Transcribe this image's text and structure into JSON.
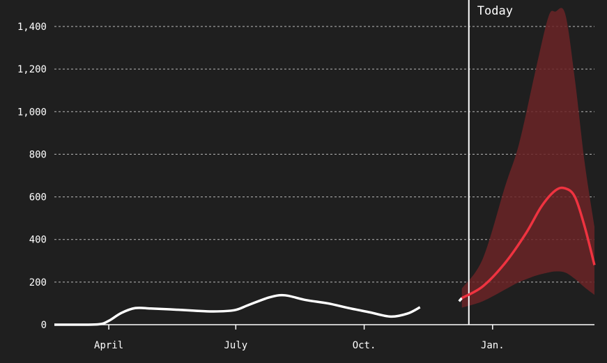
{
  "chart_data": {
    "type": "line",
    "title": "",
    "xlabel": "",
    "ylabel": "",
    "ylim": [
      0,
      1400
    ],
    "y_ticks": [
      {
        "value": 0,
        "label": "0"
      },
      {
        "value": 200,
        "label": "200"
      },
      {
        "value": 400,
        "label": "400"
      },
      {
        "value": 600,
        "label": "600"
      },
      {
        "value": 800,
        "label": "800"
      },
      {
        "value": 1000,
        "label": "1,000"
      },
      {
        "value": 1200,
        "label": "1,200"
      },
      {
        "value": 1400,
        "label": "1,400"
      }
    ],
    "x_ticks": [
      {
        "date": "2020-04-01",
        "label": "April"
      },
      {
        "date": "2020-07-01",
        "label": "July"
      },
      {
        "date": "2020-10-01",
        "label": "Oct."
      },
      {
        "date": "2021-01-01",
        "label": "Jan."
      }
    ],
    "xlim": [
      "2020-02-22",
      "2021-03-15"
    ],
    "grid": true,
    "today": {
      "date": "2020-12-15",
      "label": "Today"
    },
    "colors": {
      "background": "#1f1f1f",
      "observed": "#ffffff",
      "forecast": "#ef3340",
      "band": "#6b2427",
      "grid": "#bbbbbb"
    },
    "series": [
      {
        "role": "observed",
        "points": [
          [
            "2020-02-22",
            0
          ],
          [
            "2020-03-10",
            0
          ],
          [
            "2020-03-25",
            2
          ],
          [
            "2020-04-01",
            18
          ],
          [
            "2020-04-10",
            55
          ],
          [
            "2020-04-20",
            78
          ],
          [
            "2020-05-01",
            76
          ],
          [
            "2020-05-15",
            72
          ],
          [
            "2020-06-01",
            66
          ],
          [
            "2020-06-15",
            62
          ],
          [
            "2020-06-30",
            68
          ],
          [
            "2020-07-10",
            92
          ],
          [
            "2020-07-25",
            128
          ],
          [
            "2020-08-05",
            138
          ],
          [
            "2020-08-20",
            116
          ],
          [
            "2020-09-05",
            100
          ],
          [
            "2020-09-20",
            78
          ],
          [
            "2020-10-05",
            58
          ],
          [
            "2020-10-20",
            38
          ],
          [
            "2020-11-01",
            52
          ],
          [
            "2020-11-10",
            82
          ]
        ]
      },
      {
        "role": "observed-recent",
        "points": [
          [
            "2020-12-08",
            110
          ],
          [
            "2020-12-10",
            125
          ]
        ]
      },
      {
        "role": "forecast",
        "points": [
          [
            "2020-12-10",
            125
          ],
          [
            "2020-12-25",
            180
          ],
          [
            "2021-01-10",
            290
          ],
          [
            "2021-01-25",
            430
          ],
          [
            "2021-02-05",
            555
          ],
          [
            "2021-02-15",
            630
          ],
          [
            "2021-02-22",
            640
          ],
          [
            "2021-03-01",
            600
          ],
          [
            "2021-03-08",
            460
          ],
          [
            "2021-03-15",
            280
          ]
        ]
      }
    ],
    "band": {
      "x": [
        "2020-12-10",
        "2020-12-25",
        "2021-01-10",
        "2021-01-20",
        "2021-02-01",
        "2021-02-10",
        "2021-02-15",
        "2021-02-22",
        "2021-03-01",
        "2021-03-08",
        "2021-03-15"
      ],
      "upper": [
        170,
        310,
        650,
        850,
        1200,
        1445,
        1470,
        1460,
        1150,
        760,
        460
      ],
      "lower": [
        80,
        110,
        165,
        200,
        230,
        245,
        250,
        245,
        215,
        175,
        140
      ]
    }
  }
}
